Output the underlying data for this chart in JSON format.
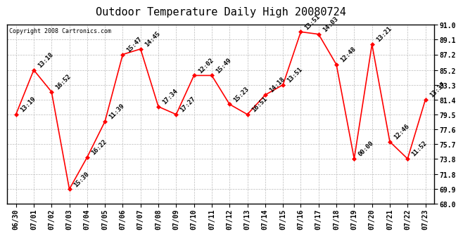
{
  "title": "Outdoor Temperature Daily High 20080724",
  "copyright": "Copyright 2008 Cartronics.com",
  "x_labels": [
    "06/30",
    "07/01",
    "07/02",
    "07/03",
    "07/04",
    "07/05",
    "07/06",
    "07/07",
    "07/08",
    "07/09",
    "07/10",
    "07/11",
    "07/12",
    "07/13",
    "07/14",
    "07/15",
    "07/16",
    "07/17",
    "07/18",
    "07/19",
    "07/20",
    "07/21",
    "07/22",
    "07/23"
  ],
  "y_values": [
    79.5,
    85.2,
    82.4,
    69.9,
    74.0,
    78.6,
    87.2,
    87.9,
    80.5,
    79.5,
    84.5,
    84.5,
    80.8,
    79.5,
    82.0,
    83.3,
    90.1,
    89.8,
    85.9,
    73.8,
    88.5,
    76.0,
    73.8,
    81.4
  ],
  "time_labels": [
    "13:19",
    "13:18",
    "16:52",
    "15:30",
    "16:22",
    "11:39",
    "15:47",
    "14:45",
    "17:34",
    "17:27",
    "12:02",
    "15:49",
    "15:23",
    "16:51",
    "14:18",
    "13:51",
    "13:51",
    "14:03",
    "12:48",
    "00:00",
    "13:21",
    "12:46",
    "11:52",
    "13:37"
  ],
  "ylim_min": 68.0,
  "ylim_max": 91.0,
  "yticks": [
    68.0,
    69.9,
    71.8,
    73.8,
    75.7,
    77.6,
    79.5,
    81.4,
    83.3,
    85.2,
    87.2,
    89.1,
    91.0
  ],
  "line_color": "red",
  "marker_color": "red",
  "bg_color": "#ffffff",
  "grid_color": "#bbbbbb",
  "title_fontsize": 11,
  "tick_fontsize": 7,
  "annot_fontsize": 6.5,
  "copyright_fontsize": 6
}
